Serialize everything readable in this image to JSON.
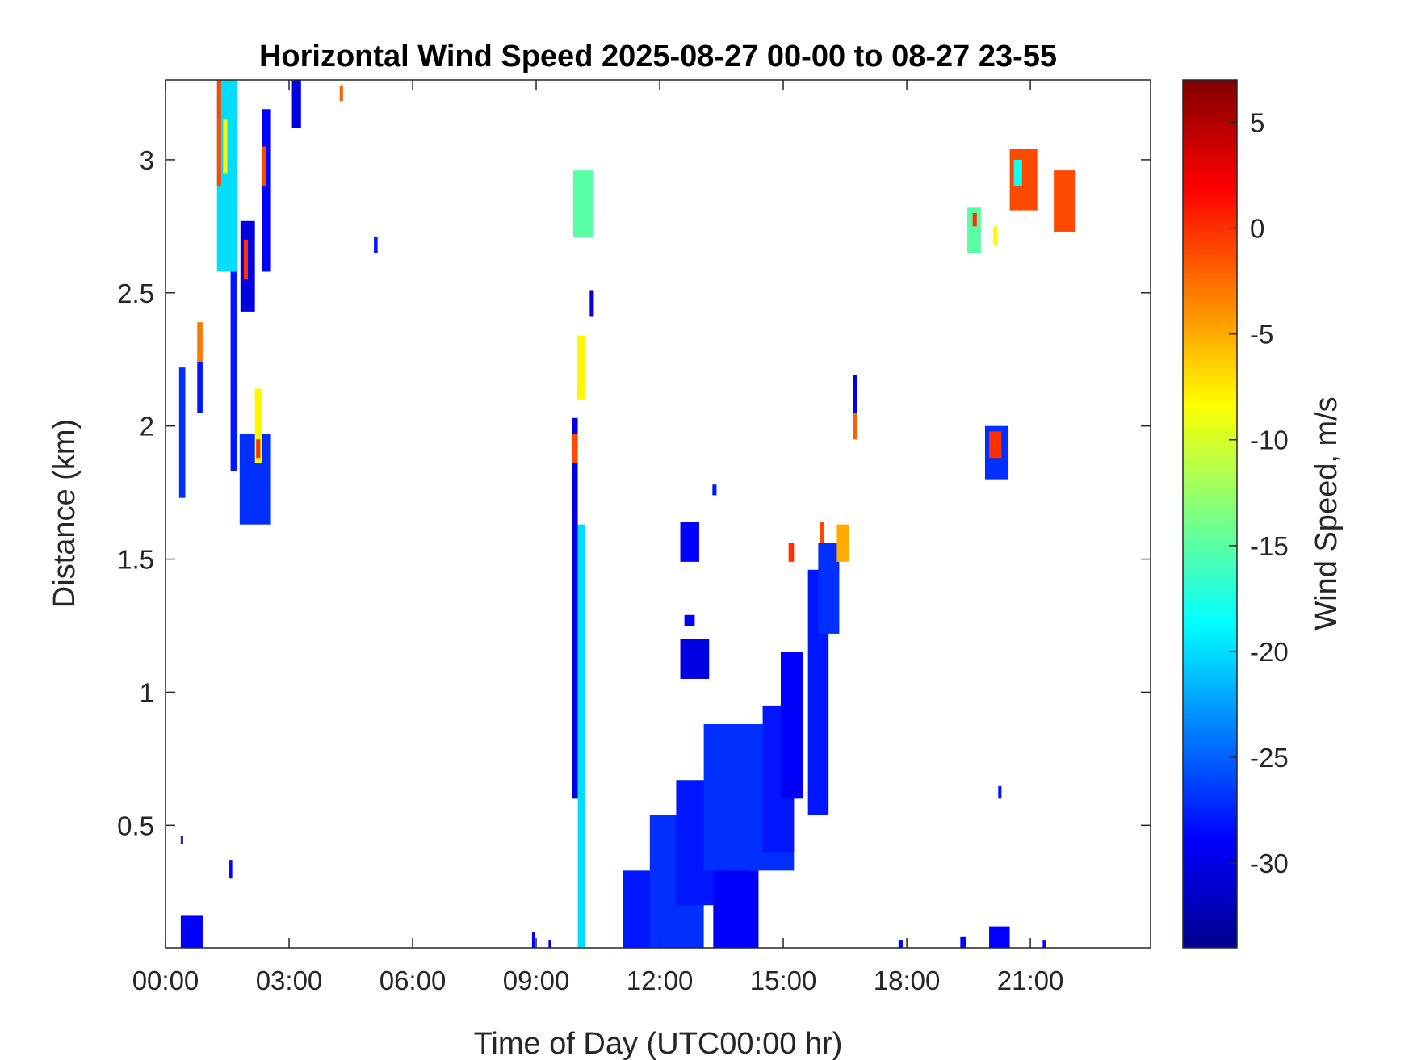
{
  "chart_data": {
    "type": "heatmap",
    "title": "Horizontal Wind Speed 2025-08-27 00-00 to 08-27 23-55",
    "xlabel": "Time of Day (UTC00:00 hr)",
    "ylabel": "Distance (km)",
    "colorbar_label": "Wind Speed, m/s",
    "colormap": "jet",
    "xlim": [
      0,
      23.92
    ],
    "ylim": [
      0.04,
      3.3
    ],
    "clim": [
      -34,
      7
    ],
    "grid": false,
    "x_ticks": [
      {
        "v": 0,
        "label": "00:00"
      },
      {
        "v": 3,
        "label": "03:00"
      },
      {
        "v": 6,
        "label": "06:00"
      },
      {
        "v": 9,
        "label": "09:00"
      },
      {
        "v": 12,
        "label": "12:00"
      },
      {
        "v": 15,
        "label": "15:00"
      },
      {
        "v": 18,
        "label": "18:00"
      },
      {
        "v": 21,
        "label": "21:00"
      }
    ],
    "y_ticks": [
      {
        "v": 0.5,
        "label": "0.5"
      },
      {
        "v": 1,
        "label": "1"
      },
      {
        "v": 1.5,
        "label": "1.5"
      },
      {
        "v": 2,
        "label": "2"
      },
      {
        "v": 2.5,
        "label": "2.5"
      },
      {
        "v": 3,
        "label": "3"
      }
    ],
    "c_ticks": [
      {
        "v": 5,
        "label": "5"
      },
      {
        "v": 0,
        "label": "0"
      },
      {
        "v": -5,
        "label": "-5"
      },
      {
        "v": -10,
        "label": "-10"
      },
      {
        "v": -15,
        "label": "-15"
      },
      {
        "v": -20,
        "label": "-20"
      },
      {
        "v": -25,
        "label": "-25"
      },
      {
        "v": -30,
        "label": "-30"
      }
    ],
    "regions_columns": [
      "time_start_hr",
      "time_end_hr",
      "dist_start_km",
      "dist_end_km",
      "speed_ms"
    ],
    "regions": [
      [
        0.33,
        0.48,
        1.73,
        2.22,
        -27
      ],
      [
        0.77,
        0.9,
        2.24,
        2.39,
        -3
      ],
      [
        0.77,
        0.9,
        2.05,
        2.24,
        -28
      ],
      [
        1.25,
        1.73,
        2.58,
        3.3,
        -20
      ],
      [
        1.25,
        1.35,
        2.9,
        3.3,
        -1
      ],
      [
        1.4,
        1.5,
        2.95,
        3.15,
        -8
      ],
      [
        1.58,
        1.73,
        1.83,
        2.58,
        -28
      ],
      [
        1.82,
        2.17,
        2.43,
        2.77,
        -30
      ],
      [
        1.9,
        2.0,
        2.55,
        2.7,
        0
      ],
      [
        1.8,
        2.56,
        1.63,
        1.97,
        -27
      ],
      [
        2.17,
        2.34,
        1.86,
        2.14,
        -8
      ],
      [
        2.2,
        2.3,
        1.88,
        1.95,
        0
      ],
      [
        2.34,
        2.56,
        2.58,
        3.19,
        -29
      ],
      [
        2.34,
        2.44,
        2.9,
        3.05,
        -1
      ],
      [
        3.07,
        3.29,
        3.12,
        3.3,
        -30
      ],
      [
        4.23,
        4.31,
        3.22,
        3.28,
        -2
      ],
      [
        5.06,
        5.15,
        2.65,
        2.71,
        -28
      ],
      [
        9.88,
        10.01,
        0.6,
        2.03,
        -30
      ],
      [
        9.88,
        10.01,
        1.86,
        1.97,
        -1
      ],
      [
        10.01,
        10.18,
        0.04,
        1.63,
        -20
      ],
      [
        9.9,
        10.4,
        2.71,
        2.96,
        -15
      ],
      [
        10.0,
        10.2,
        2.1,
        2.34,
        -8
      ],
      [
        10.3,
        10.4,
        2.41,
        2.51,
        -30
      ],
      [
        11.1,
        12.3,
        0.04,
        0.33,
        -28
      ],
      [
        11.76,
        13.07,
        0.04,
        0.54,
        -27
      ],
      [
        12.4,
        14.2,
        0.2,
        0.67,
        -28
      ],
      [
        13.07,
        15.26,
        0.33,
        0.88,
        -27
      ],
      [
        13.3,
        14.4,
        0.04,
        0.33,
        -29
      ],
      [
        14.5,
        15.26,
        0.4,
        0.95,
        -28
      ],
      [
        14.94,
        15.48,
        0.6,
        1.15,
        -29
      ],
      [
        15.6,
        16.1,
        0.54,
        1.46,
        -28
      ],
      [
        15.85,
        16.36,
        1.22,
        1.56,
        -27
      ],
      [
        16.3,
        16.6,
        1.49,
        1.63,
        -5
      ],
      [
        15.13,
        15.26,
        1.49,
        1.56,
        0
      ],
      [
        15.9,
        16.0,
        1.56,
        1.64,
        -1
      ],
      [
        12.5,
        12.96,
        1.49,
        1.64,
        -29
      ],
      [
        12.6,
        12.85,
        1.25,
        1.29,
        -29
      ],
      [
        12.5,
        13.2,
        1.05,
        1.2,
        -30
      ],
      [
        13.28,
        13.38,
        1.74,
        1.78,
        -28
      ],
      [
        16.7,
        16.8,
        1.95,
        2.19,
        -30
      ],
      [
        16.7,
        16.8,
        1.95,
        2.05,
        -2
      ],
      [
        19.9,
        20.47,
        1.8,
        2.0,
        -27
      ],
      [
        20.0,
        20.3,
        1.88,
        1.98,
        0
      ],
      [
        20.5,
        21.17,
        2.81,
        3.04,
        -1
      ],
      [
        20.6,
        20.8,
        2.9,
        3.0,
        -18
      ],
      [
        21.57,
        22.1,
        2.73,
        2.96,
        -1
      ],
      [
        19.47,
        19.8,
        2.65,
        2.82,
        -15
      ],
      [
        19.6,
        19.7,
        2.75,
        2.8,
        0
      ],
      [
        20.1,
        20.2,
        2.68,
        2.75,
        -8
      ],
      [
        20.22,
        20.3,
        0.6,
        0.65,
        -28
      ],
      [
        0.37,
        0.92,
        0.04,
        0.16,
        -29
      ],
      [
        1.55,
        1.62,
        0.3,
        0.37,
        -29
      ],
      [
        8.9,
        8.97,
        0.04,
        0.1,
        -29
      ],
      [
        9.3,
        9.37,
        0.04,
        0.07,
        -29
      ],
      [
        20.0,
        20.5,
        0.04,
        0.12,
        -29
      ],
      [
        17.8,
        17.9,
        0.04,
        0.07,
        -29
      ],
      [
        19.3,
        19.45,
        0.04,
        0.08,
        -29
      ],
      [
        21.3,
        21.37,
        0.04,
        0.07,
        -29
      ],
      [
        0.37,
        0.42,
        0.43,
        0.46,
        -28
      ]
    ]
  }
}
